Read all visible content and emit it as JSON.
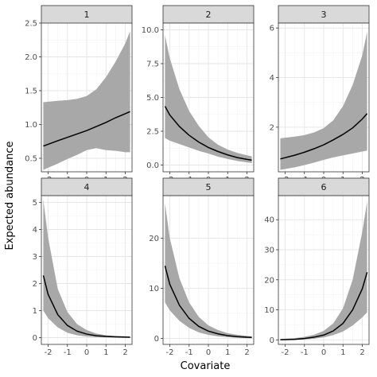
{
  "chart_data": {
    "type": "line",
    "xlabel": "Covariate",
    "ylabel": "Expected abundance",
    "x_ticks": [
      -2,
      -1,
      0,
      1,
      2
    ],
    "xlim": [
      -2.35,
      2.35
    ],
    "panels": [
      {
        "label": "1",
        "ylim": [
          0.3,
          2.5
        ],
        "y_ticks": [
          0.5,
          1.0,
          1.5,
          2.0,
          2.5
        ],
        "y_tick_labels": [
          "0.5",
          "1.0",
          "1.5",
          "2.0",
          "2.5"
        ],
        "series": [
          {
            "x": [
              -2.25,
              -1.5,
              -1,
              -0.5,
              0,
              0.5,
              1,
              1.5,
              2,
              2.25
            ],
            "y": [
              0.68,
              0.76,
              0.81,
              0.86,
              0.91,
              0.97,
              1.03,
              1.1,
              1.16,
              1.19
            ],
            "lower": [
              0.33,
              0.42,
              0.49,
              0.55,
              0.62,
              0.65,
              0.62,
              0.61,
              0.59,
              0.59
            ],
            "upper": [
              1.33,
              1.35,
              1.36,
              1.38,
              1.42,
              1.52,
              1.7,
              1.93,
              2.2,
              2.38
            ]
          }
        ]
      },
      {
        "label": "2",
        "ylim": [
          -0.5,
          10.5
        ],
        "y_ticks": [
          0,
          2.5,
          5,
          7.5,
          10
        ],
        "y_tick_labels": [
          "0.0",
          "2.5",
          "5.0",
          "7.5",
          "10.0"
        ],
        "series": [
          {
            "x": [
              -2.25,
              -2,
              -1.5,
              -1,
              -0.5,
              0,
              0.5,
              1,
              1.5,
              2,
              2.25
            ],
            "y": [
              4.35,
              3.7,
              2.85,
              2.2,
              1.7,
              1.3,
              1.0,
              0.75,
              0.55,
              0.42,
              0.36
            ],
            "lower": [
              2.0,
              1.8,
              1.55,
              1.3,
              1.05,
              0.85,
              0.62,
              0.45,
              0.3,
              0.2,
              0.15
            ],
            "upper": [
              9.6,
              7.9,
              5.6,
              4.0,
              2.9,
              2.05,
              1.5,
              1.15,
              0.9,
              0.72,
              0.65
            ]
          }
        ]
      },
      {
        "label": "3",
        "ylim": [
          0.2,
          6.2
        ],
        "y_ticks": [
          2,
          4,
          6
        ],
        "y_tick_labels": [
          "2",
          "4",
          "6"
        ],
        "series": [
          {
            "x": [
              -2.25,
              -1.5,
              -1,
              -0.5,
              0,
              0.5,
              1,
              1.5,
              2,
              2.25
            ],
            "y": [
              0.72,
              0.87,
              0.99,
              1.13,
              1.29,
              1.49,
              1.71,
              1.97,
              2.33,
              2.55
            ],
            "lower": [
              0.28,
              0.38,
              0.47,
              0.57,
              0.68,
              0.78,
              0.86,
              0.94,
              1.02,
              1.06
            ],
            "upper": [
              1.55,
              1.62,
              1.68,
              1.79,
              1.96,
              2.28,
              2.85,
              3.7,
              4.9,
              5.85
            ]
          }
        ]
      },
      {
        "label": "4",
        "ylim": [
          -0.25,
          5.25
        ],
        "y_ticks": [
          0,
          1,
          2,
          3,
          4,
          5
        ],
        "y_tick_labels": [
          "0",
          "1",
          "2",
          "3",
          "4",
          "5"
        ],
        "series": [
          {
            "x": [
              -2.25,
              -2,
              -1.5,
              -1,
              -0.5,
              0,
              0.5,
              1,
              1.5,
              2,
              2.25
            ],
            "y": [
              2.3,
              1.6,
              0.85,
              0.45,
              0.24,
              0.13,
              0.07,
              0.045,
              0.03,
              0.02,
              0.015
            ],
            "lower": [
              1.0,
              0.72,
              0.38,
              0.18,
              0.09,
              0.04,
              0.02,
              0.01,
              0.005,
              0.0,
              0.0
            ],
            "upper": [
              5.1,
              3.7,
              1.8,
              0.95,
              0.5,
              0.28,
              0.15,
              0.09,
              0.06,
              0.05,
              0.04
            ]
          }
        ]
      },
      {
        "label": "5",
        "ylim": [
          -1.2,
          28.5
        ],
        "y_ticks": [
          0,
          10,
          20
        ],
        "y_tick_labels": [
          "0",
          "10",
          "20"
        ],
        "series": [
          {
            "x": [
              -2.25,
              -2,
              -1.5,
              -1,
              -0.5,
              0,
              0.5,
              1,
              1.5,
              2,
              2.25
            ],
            "y": [
              14.5,
              10.8,
              6.6,
              4.0,
              2.4,
              1.45,
              0.9,
              0.55,
              0.35,
              0.22,
              0.18
            ],
            "lower": [
              7.2,
              5.6,
              3.5,
              2.1,
              1.2,
              0.7,
              0.4,
              0.22,
              0.12,
              0.06,
              0.04
            ],
            "upper": [
              27.0,
              20.0,
              12.0,
              7.2,
              4.3,
              2.6,
              1.65,
              1.05,
              0.7,
              0.5,
              0.4
            ]
          }
        ]
      },
      {
        "label": "6",
        "ylim": [
          -1.5,
          48.0
        ],
        "y_ticks": [
          0,
          10,
          20,
          30,
          40
        ],
        "y_tick_labels": [
          "0",
          "10",
          "20",
          "30",
          "40"
        ],
        "series": [
          {
            "x": [
              -2.25,
              -2,
              -1.5,
              -1,
              -0.5,
              0,
              0.5,
              1,
              1.5,
              2,
              2.25
            ],
            "y": [
              0.05,
              0.08,
              0.2,
              0.45,
              0.9,
              1.6,
              3.0,
              5.5,
              10.0,
              17.0,
              22.5
            ],
            "lower": [
              0.0,
              0.0,
              0.05,
              0.15,
              0.4,
              0.8,
              1.6,
              2.8,
              4.8,
              7.5,
              9.2
            ],
            "upper": [
              0.3,
              0.4,
              0.6,
              1.0,
              1.7,
              3.0,
              5.5,
              10.5,
              20.0,
              36.0,
              46.0
            ]
          }
        ]
      }
    ]
  }
}
